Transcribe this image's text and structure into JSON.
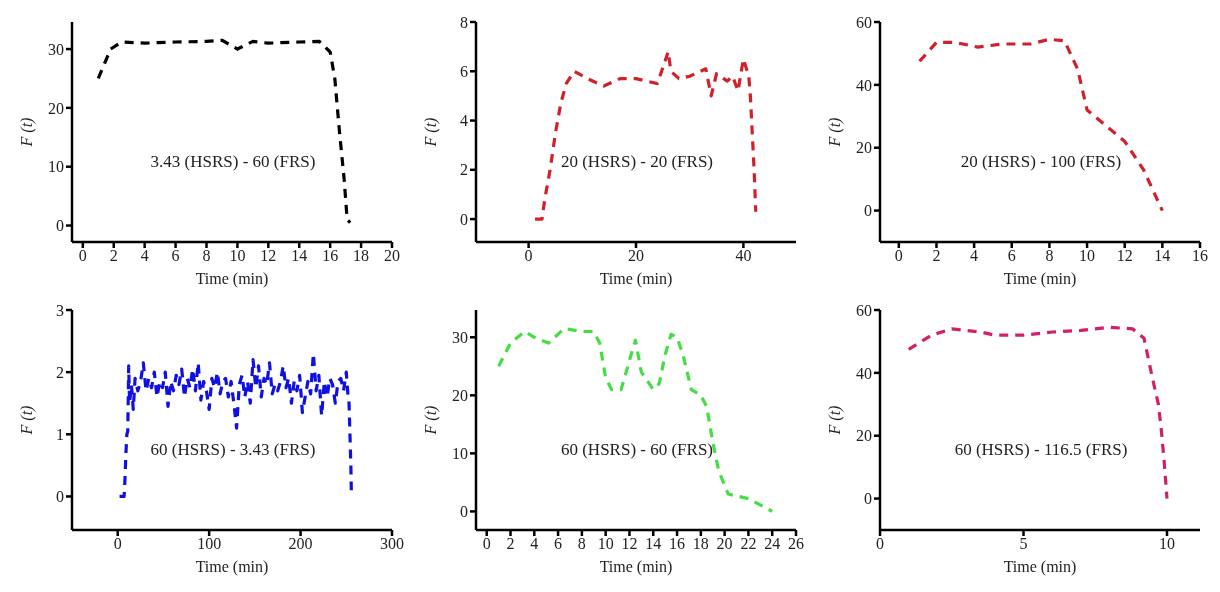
{
  "chart_data": [
    {
      "type": "line",
      "xlabel": "Time (min)",
      "ylabel": "F (t)",
      "annotations": [
        "3.43 (HSRS) - 60 (FRS)"
      ],
      "xlim": [
        -0.7,
        20
      ],
      "xticks": [
        0,
        2,
        4,
        6,
        8,
        10,
        12,
        14,
        16,
        18,
        20
      ],
      "ylim": [
        -2.8,
        34.6
      ],
      "yticks": [
        0,
        10,
        20,
        30
      ],
      "grid": false,
      "legend": false,
      "marker": "none",
      "line_style": "dashed",
      "series": [
        {
          "color": "#000000",
          "x": [
            1,
            1.8,
            2.5,
            4,
            6,
            8,
            9,
            10,
            11,
            12,
            14,
            15.3,
            16,
            16.3,
            16.6,
            16.9,
            17.1,
            17.3
          ],
          "values": [
            25,
            30,
            31.2,
            31,
            31.2,
            31.3,
            31.5,
            30,
            31.3,
            31,
            31.2,
            31.3,
            29.5,
            25,
            16,
            8,
            1,
            0.5
          ]
        }
      ]
    },
    {
      "type": "line",
      "xlabel": "Time (min)",
      "ylabel": "F (t)",
      "annotations": [
        "20 (HSRS) - 20 (FRS)"
      ],
      "xlim": [
        -9.8,
        49.8
      ],
      "xticks": [
        0,
        20,
        40
      ],
      "ylim": [
        -0.93,
        8
      ],
      "yticks": [
        0,
        2,
        4,
        6,
        8
      ],
      "grid": false,
      "legend": false,
      "marker": "none",
      "line_style": "dashed",
      "series": [
        {
          "color": "#d0202a",
          "x": [
            1.2,
            2.5,
            3,
            4,
            5,
            6,
            7,
            8.5,
            11,
            14,
            17,
            20,
            24,
            26,
            26.5,
            28,
            30,
            32,
            33,
            34,
            35,
            37,
            38,
            39,
            40,
            41,
            41.3,
            42,
            42.3
          ],
          "values": [
            0,
            0,
            0.8,
            2,
            3.5,
            4.7,
            5.5,
            6,
            5.7,
            5.4,
            5.7,
            5.7,
            5.5,
            6.8,
            6,
            5.7,
            5.8,
            6,
            6.1,
            5,
            5.9,
            5.6,
            5.8,
            5.2,
            6.5,
            5.8,
            5,
            2,
            0.3
          ]
        }
      ]
    },
    {
      "type": "line",
      "xlabel": "Time (min)",
      "ylabel": "F (t)",
      "annotations": [
        "20 (HSRS) - 100 (FRS)"
      ],
      "xlim": [
        -1,
        16
      ],
      "xticks": [
        0,
        2,
        4,
        6,
        8,
        10,
        12,
        14,
        16
      ],
      "ylim": [
        -10,
        60
      ],
      "yticks": [
        0,
        20,
        40,
        60
      ],
      "grid": false,
      "legend": false,
      "marker": "none",
      "line_style": "dashed",
      "series": [
        {
          "color": "#d0202a",
          "x": [
            1.1,
            2,
            3,
            4.2,
            5.5,
            7,
            8,
            8.8,
            9.5,
            10,
            11,
            12,
            13,
            14
          ],
          "values": [
            47.5,
            53.5,
            53.5,
            52,
            53,
            53,
            54.5,
            54,
            45,
            32,
            27,
            22,
            13,
            0
          ]
        }
      ]
    },
    {
      "type": "line",
      "xlabel": "Time (min)",
      "ylabel": "F (t)",
      "annotations": [
        "60 (HSRS) - 3.43 (FRS)"
      ],
      "xlim": [
        -50,
        300
      ],
      "xticks": [
        0,
        100,
        200,
        300
      ],
      "ylim": [
        -0.54,
        3
      ],
      "yticks": [
        0,
        1,
        2,
        3
      ],
      "grid": false,
      "legend": false,
      "marker": "none",
      "line_style": "dashed",
      "series": [
        {
          "color": "#1010e0",
          "x": [
            2,
            7,
            8,
            9,
            10,
            11,
            12,
            13,
            15,
            17,
            19,
            22,
            25,
            28,
            31,
            34,
            37,
            40,
            43,
            46,
            49,
            52,
            55,
            58,
            61,
            64,
            67,
            70,
            73,
            76,
            79,
            82,
            85,
            88,
            91,
            94,
            97,
            100,
            103,
            106,
            109,
            112,
            115,
            118,
            121,
            124,
            127,
            130,
            133,
            136,
            139,
            142,
            145,
            148,
            151,
            154,
            157,
            160,
            163,
            166,
            169,
            172,
            175,
            178,
            181,
            184,
            187,
            190,
            193,
            196,
            199,
            202,
            205,
            208,
            211,
            214,
            217,
            220,
            223,
            226,
            229,
            232,
            235,
            238,
            241,
            244,
            247,
            250,
            252,
            253,
            254,
            255,
            255.5
          ],
          "values": [
            0,
            0,
            0.3,
            0.7,
            1,
            1.05,
            2.1,
            1.5,
            1.8,
            1.4,
            1.9,
            1.7,
            1.85,
            2.15,
            1.7,
            1.9,
            1.75,
            2,
            1.6,
            1.85,
            1.75,
            2,
            1.45,
            1.85,
            1.7,
            1.95,
            1.8,
            2.05,
            1.6,
            1.9,
            1.75,
            2.05,
            1.7,
            2.15,
            1.55,
            1.85,
            1.7,
            1.4,
            1.9,
            1.75,
            2,
            1.65,
            1.85,
            1.9,
            1.6,
            1.85,
            1.5,
            1.1,
            1.8,
            1.95,
            1.6,
            1.85,
            1.5,
            2.2,
            1.75,
            2.1,
            1.6,
            1.9,
            1.8,
            2.15,
            1.65,
            1.8,
            1.7,
            1.85,
            2.1,
            1.75,
            1.9,
            1.5,
            1.85,
            1.7,
            1.95,
            1.35,
            1.6,
            1.85,
            1.65,
            2.3,
            1.7,
            1.95,
            1.3,
            1.85,
            1.6,
            1.9,
            1.8,
            1.5,
            1.85,
            1.9,
            1.7,
            2,
            1.6,
            1.5,
            1,
            0.5,
            0.1
          ]
        }
      ]
    },
    {
      "type": "line",
      "xlabel": "Time (min)",
      "ylabel": "F (t)",
      "annotations": [
        "60 (HSRS) - 60 (FRS)"
      ],
      "xlim": [
        -0.9,
        26
      ],
      "xticks": [
        0,
        2,
        4,
        6,
        8,
        10,
        12,
        14,
        16,
        18,
        20,
        22,
        24,
        26
      ],
      "ylim": [
        -3.2,
        34.7
      ],
      "yticks": [
        0,
        10,
        20,
        30
      ],
      "grid": false,
      "legend": false,
      "marker": "none",
      "line_style": "dashed",
      "series": [
        {
          "color": "#44dd44",
          "x": [
            1,
            2,
            3.2,
            4,
            5.2,
            6.5,
            8,
            9,
            9.5,
            10,
            10.5,
            11.3,
            12,
            12.5,
            13,
            14,
            14.5,
            15,
            15.5,
            16,
            16.5,
            17.2,
            18,
            18.5,
            19,
            19.5,
            20.3,
            22,
            24
          ],
          "values": [
            25,
            29,
            31,
            30,
            29,
            31.5,
            31,
            31,
            29,
            23,
            21,
            21,
            26,
            29.5,
            24,
            21,
            22,
            27,
            30.5,
            30,
            27,
            21,
            20,
            18,
            12,
            7,
            3,
            2.2,
            0
          ]
        }
      ]
    },
    {
      "type": "line",
      "xlabel": "Time (min)",
      "ylabel": "F (t)",
      "annotations": [
        "60 (HSRS) - 116.5 (FRS)"
      ],
      "xlim": [
        0,
        11.15
      ],
      "xticks": [
        0,
        5,
        10
      ],
      "ylim": [
        -10,
        60
      ],
      "yticks": [
        0,
        20,
        40,
        60
      ],
      "grid": false,
      "legend": false,
      "marker": "none",
      "line_style": "dashed",
      "series": [
        {
          "color": "#d0206a",
          "x": [
            1,
            1.8,
            2.5,
            3.5,
            4,
            5,
            6,
            7,
            8,
            8.8,
            9.2,
            9.5,
            9.7,
            9.8,
            9.9,
            10
          ],
          "values": [
            47.5,
            52,
            54,
            53,
            52,
            52,
            53,
            53.5,
            54.5,
            54,
            51,
            38,
            30,
            22,
            12,
            0
          ]
        }
      ]
    }
  ]
}
